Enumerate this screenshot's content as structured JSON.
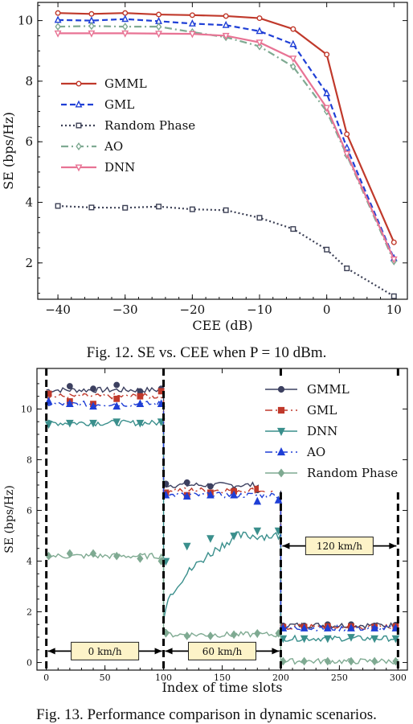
{
  "captions": {
    "fig12": "Fig. 12.  SE vs. CEE when P = 10 dBm.",
    "fig13": "Fig. 13.  Performance comparison in dynamic scenarios."
  },
  "chart_data": [
    {
      "type": "line",
      "title": "",
      "xlabel": "CEE (dB)",
      "ylabel": "SE (bps/Hz)",
      "xlim": [
        -43,
        12
      ],
      "ylim": [
        0.8,
        10.6
      ],
      "x_ticks": [
        "−40",
        "−30",
        "−20",
        "−10",
        "0",
        "10"
      ],
      "y_ticks": [
        "2",
        "4",
        "6",
        "8",
        "10"
      ],
      "legend_position": "center-left",
      "x": [
        -40,
        -35,
        -30,
        -25,
        -20,
        -15,
        -10,
        -5,
        0,
        3,
        10
      ],
      "series": [
        {
          "name": "GMML",
          "color": "#c0392b",
          "marker": "circle",
          "dash": "solid",
          "values": [
            10.25,
            10.22,
            10.25,
            10.2,
            10.18,
            10.15,
            10.08,
            9.72,
            8.88,
            6.25,
            2.68
          ]
        },
        {
          "name": "GML",
          "color": "#1f3fd6",
          "marker": "triangle",
          "dash": "dashed",
          "values": [
            10.02,
            10.0,
            10.05,
            9.98,
            9.9,
            9.85,
            9.65,
            9.22,
            7.6,
            5.8,
            2.15
          ]
        },
        {
          "name": "Random Phase",
          "color": "#3c4055",
          "marker": "square",
          "dash": "dotted",
          "values": [
            3.88,
            3.83,
            3.82,
            3.86,
            3.77,
            3.74,
            3.49,
            3.12,
            2.44,
            1.82,
            0.9
          ]
        },
        {
          "name": "AO",
          "color": "#7faa92",
          "marker": "diamond",
          "dash": "dashdot",
          "values": [
            9.8,
            9.82,
            9.8,
            9.8,
            9.62,
            9.45,
            9.15,
            8.48,
            7.0,
            5.55,
            2.05
          ]
        },
        {
          "name": "DNN",
          "color": "#e87394",
          "marker": "triangle-down",
          "dash": "solid",
          "values": [
            9.58,
            9.58,
            9.58,
            9.57,
            9.56,
            9.5,
            9.28,
            8.75,
            7.12,
            5.6,
            2.12
          ]
        }
      ]
    },
    {
      "type": "line",
      "title": "",
      "xlabel": "Index of time slots",
      "ylabel": "SE (bps/Hz)",
      "xlim": [
        -8,
        308
      ],
      "ylim": [
        -0.3,
        11.6
      ],
      "x_ticks": [
        "0",
        "50",
        "100",
        "150",
        "200",
        "250",
        "300"
      ],
      "y_ticks": [
        "0",
        "2",
        "4",
        "6",
        "8",
        "10"
      ],
      "legend_position": "top-right",
      "segments": [
        {
          "label": "0 km/h",
          "from": 0,
          "to": 100,
          "annotation_y": 0.45
        },
        {
          "label": "60 km/h",
          "from": 100,
          "to": 200,
          "annotation_y": 0.45
        },
        {
          "label": "120 km/h",
          "from": 200,
          "to": 300,
          "annotation_y": 4.6
        }
      ],
      "series": [
        {
          "name": "GMML",
          "color": "#3c4060",
          "marker": "circle",
          "dash": "solid",
          "levels": [
            10.75,
            7.0,
            1.47
          ],
          "marker_values": [
            10.6,
            10.9,
            10.8,
            10.95,
            10.7,
            10.8,
            7.05,
            7.1,
            6.95,
            6.8,
            6.8,
            6.9,
            1.45,
            1.45,
            1.5,
            1.5,
            1.45,
            1.48
          ]
        },
        {
          "name": "GML",
          "color": "#c0392b",
          "marker": "square",
          "dash": "dashdot",
          "levels": [
            10.5,
            6.8,
            1.4
          ],
          "marker_values": [
            10.6,
            10.3,
            10.2,
            10.4,
            10.5,
            10.7,
            6.7,
            6.6,
            6.7,
            6.75,
            6.85,
            6.9,
            1.4,
            1.4,
            1.42,
            1.42,
            1.4,
            1.42
          ]
        },
        {
          "name": "DNN",
          "color": "#3a8f8c",
          "marker": "triangle-down",
          "dash": "solid",
          "levels": [
            9.45,
            5.0,
            0.95
          ],
          "marker_values": [
            9.4,
            9.45,
            9.45,
            9.5,
            9.45,
            9.5,
            4.0,
            4.6,
            4.9,
            5.0,
            5.2,
            5.2,
            0.95,
            0.95,
            0.95,
            1.0,
            0.95,
            0.95
          ]
        },
        {
          "name": "AO",
          "color": "#1f3fd6",
          "marker": "triangle",
          "dash": "dashdot",
          "levels": [
            10.2,
            6.6,
            1.35
          ],
          "marker_values": [
            10.3,
            10.2,
            10.1,
            10.1,
            10.2,
            10.2,
            6.6,
            6.55,
            6.6,
            6.6,
            6.35,
            6.4,
            1.35,
            1.35,
            1.35,
            1.35,
            1.35,
            1.35
          ]
        },
        {
          "name": "Random Phase",
          "color": "#7faa92",
          "marker": "diamond",
          "dash": "solid",
          "levels": [
            4.2,
            1.1,
            0.05
          ],
          "marker_values": [
            4.2,
            4.3,
            4.3,
            4.2,
            4.1,
            4.0,
            1.15,
            1.05,
            1.05,
            1.1,
            1.15,
            1.15,
            0.05,
            0.05,
            0.05,
            0.05,
            0.05,
            0.05
          ]
        }
      ]
    }
  ]
}
